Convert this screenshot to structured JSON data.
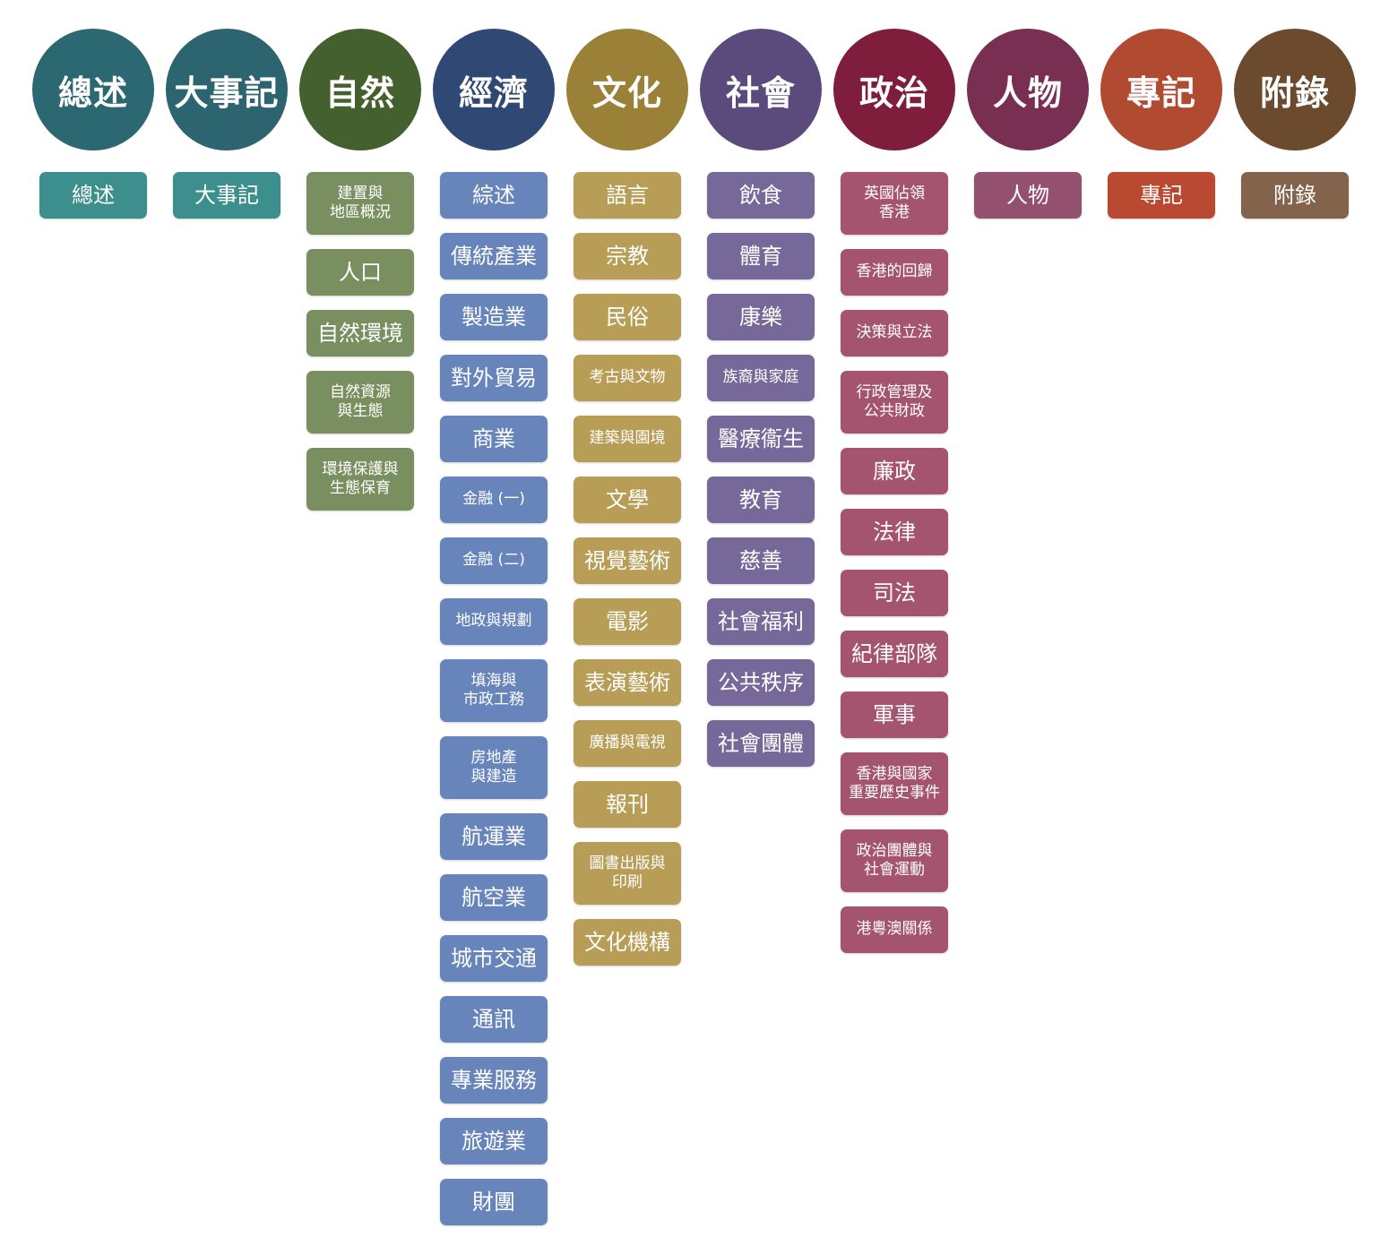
{
  "categories": [
    {
      "key": "overview",
      "title": "總述",
      "circle_color": "#2c6872",
      "item_color": "#3d8f8e",
      "items": [
        "總述"
      ]
    },
    {
      "key": "chronicle",
      "title": "大事記",
      "circle_color": "#2c6470",
      "item_color": "#3d8f8e",
      "items": [
        "大事記"
      ]
    },
    {
      "key": "nature",
      "title": "自然",
      "circle_color": "#44602e",
      "item_color": "#798f60",
      "items": [
        "建置與\n地區概況",
        "人口",
        "自然環境",
        "自然資源\n與生態",
        "環境保護與\n生態保育"
      ]
    },
    {
      "key": "economy",
      "title": "經濟",
      "circle_color": "#2f4874",
      "item_color": "#6885bb",
      "items": [
        "綜述",
        "傳統產業",
        "製造業",
        "對外貿易",
        "商業",
        "金融 (一)",
        "金融 (二)",
        "地政與規劃",
        "填海與\n市政工務",
        "房地產\n與建造",
        "航運業",
        "航空業",
        "城市交通",
        "通訊",
        "專業服務",
        "旅遊業",
        "財團"
      ]
    },
    {
      "key": "culture",
      "title": "文化",
      "circle_color": "#9a8137",
      "item_color": "#b89d57",
      "items": [
        "語言",
        "宗教",
        "民俗",
        "考古與文物",
        "建築與園境",
        "文學",
        "視覺藝術",
        "電影",
        "表演藝術",
        "廣播與電視",
        "報刊",
        "圖書出版與\n印刷",
        "文化機構"
      ]
    },
    {
      "key": "society",
      "title": "社會",
      "circle_color": "#5b4a7c",
      "item_color": "#76699a",
      "items": [
        "飲食",
        "體育",
        "康樂",
        "族裔與家庭",
        "醫療衞生",
        "教育",
        "慈善",
        "社會福利",
        "公共秩序",
        "社會團體"
      ]
    },
    {
      "key": "politics",
      "title": "政治",
      "circle_color": "#7f1e3c",
      "item_color": "#a4546e",
      "items": [
        "英國佔領\n香港",
        "香港的回歸",
        "決策與立法",
        "行政管理及\n公共財政",
        "廉政",
        "法律",
        "司法",
        "紀律部隊",
        "軍事",
        "香港與國家\n重要歷史事件",
        "政治團體與\n社會運動",
        "港粵澳關係"
      ]
    },
    {
      "key": "people",
      "title": "人物",
      "circle_color": "#782f52",
      "item_color": "#93506f",
      "items": [
        "人物"
      ]
    },
    {
      "key": "special",
      "title": "專記",
      "circle_color": "#b04a30",
      "item_color": "#b94a31",
      "items": [
        "專記"
      ]
    },
    {
      "key": "appendix",
      "title": "附錄",
      "circle_color": "#6b4a2d",
      "item_color": "#83634b",
      "items": [
        "附錄"
      ]
    }
  ]
}
